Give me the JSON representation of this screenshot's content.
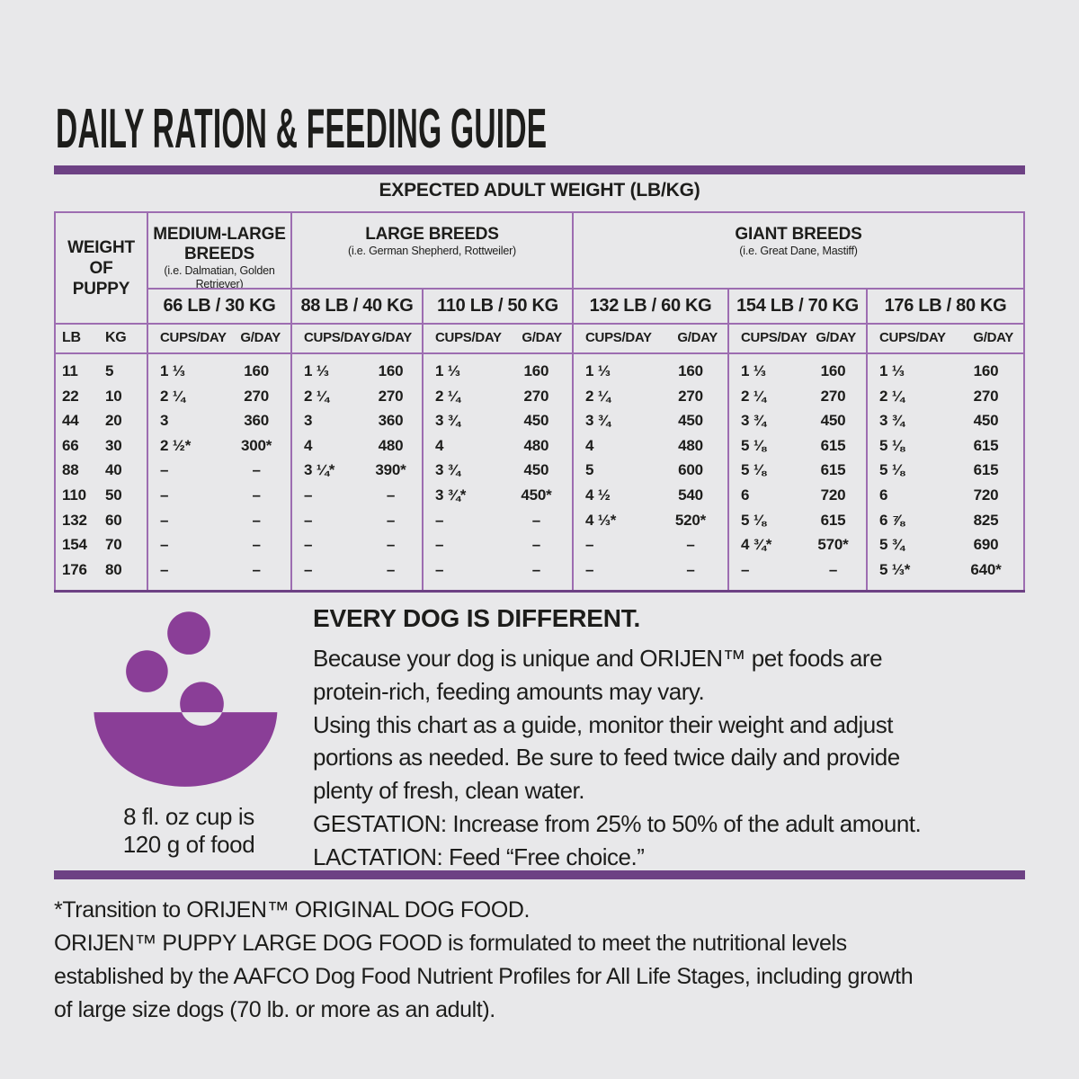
{
  "page": {
    "title": "DAILY RATION & FEEDING GUIDE"
  },
  "colors": {
    "background": "#e8e8ea",
    "accent_purple": "#6d4184",
    "table_line_purple": "#9d6db1",
    "bowl_purple": "#8a3e97",
    "text": "#1d1d1b"
  },
  "table": {
    "banner": "EXPECTED ADULT WEIGHT (LB/KG)",
    "puppy_header": "WEIGHT\nOF\nPUPPY",
    "lb_label": "LB",
    "kg_label": "KG",
    "cups_label": "CUPS/DAY",
    "g_label": "G/DAY",
    "groups": [
      {
        "name": "MEDIUM-LARGE BREEDS",
        "examples": "(i.e. Dalmatian, Golden Retriever)"
      },
      {
        "name": "LARGE BREEDS",
        "examples": "(i.e. German Shepherd, Rottweiler)"
      },
      {
        "name": "GIANT BREEDS",
        "examples": "(i.e. Great Dane, Mastiff)"
      }
    ],
    "weights": [
      "66 LB / 30 KG",
      "88 LB / 40 KG",
      "110 LB / 50 KG",
      "132 LB / 60 KG",
      "154 LB / 70 KG",
      "176 LB / 80 KG"
    ],
    "rows": [
      {
        "lb": "11",
        "kg": "5",
        "cells": [
          [
            "1 ⅓",
            "160"
          ],
          [
            "1 ⅓",
            "160"
          ],
          [
            "1 ⅓",
            "160"
          ],
          [
            "1 ⅓",
            "160"
          ],
          [
            "1 ⅓",
            "160"
          ],
          [
            "1 ⅓",
            "160"
          ]
        ]
      },
      {
        "lb": "22",
        "kg": "10",
        "cells": [
          [
            "2 ¼",
            "270"
          ],
          [
            "2 ¼",
            "270"
          ],
          [
            "2 ¼",
            "270"
          ],
          [
            "2 ¼",
            "270"
          ],
          [
            "2 ¼",
            "270"
          ],
          [
            "2 ¼",
            "270"
          ]
        ]
      },
      {
        "lb": "44",
        "kg": "20",
        "cells": [
          [
            "3",
            "360"
          ],
          [
            "3",
            "360"
          ],
          [
            "3 ¾",
            "450"
          ],
          [
            "3 ¾",
            "450"
          ],
          [
            "3 ¾",
            "450"
          ],
          [
            "3 ¾",
            "450"
          ]
        ]
      },
      {
        "lb": "66",
        "kg": "30",
        "cells": [
          [
            "2 ½*",
            "300*"
          ],
          [
            "4",
            "480"
          ],
          [
            "4",
            "480"
          ],
          [
            "4",
            "480"
          ],
          [
            "5 ⅛",
            "615"
          ],
          [
            "5 ⅛",
            "615"
          ]
        ]
      },
      {
        "lb": "88",
        "kg": "40",
        "cells": [
          [
            "–",
            "–"
          ],
          [
            "3 ¼*",
            "390*"
          ],
          [
            "3 ¾",
            "450"
          ],
          [
            "5",
            "600"
          ],
          [
            "5 ⅛",
            "615"
          ],
          [
            "5 ⅛",
            "615"
          ]
        ]
      },
      {
        "lb": "110",
        "kg": "50",
        "cells": [
          [
            "–",
            "–"
          ],
          [
            "–",
            "–"
          ],
          [
            "3 ¾*",
            "450*"
          ],
          [
            "4 ½",
            "540"
          ],
          [
            "6",
            "720"
          ],
          [
            "6",
            "720"
          ]
        ]
      },
      {
        "lb": "132",
        "kg": "60",
        "cells": [
          [
            "–",
            "–"
          ],
          [
            "–",
            "–"
          ],
          [
            "–",
            "–"
          ],
          [
            "4 ⅓*",
            "520*"
          ],
          [
            "5 ⅛",
            "615"
          ],
          [
            "6 ⅞",
            "825"
          ]
        ]
      },
      {
        "lb": "154",
        "kg": "70",
        "cells": [
          [
            "–",
            "–"
          ],
          [
            "–",
            "–"
          ],
          [
            "–",
            "–"
          ],
          [
            "–",
            "–"
          ],
          [
            "4 ¾*",
            "570*"
          ],
          [
            "5 ¾",
            "690"
          ]
        ]
      },
      {
        "lb": "176",
        "kg": "80",
        "cells": [
          [
            "–",
            "–"
          ],
          [
            "–",
            "–"
          ],
          [
            "–",
            "–"
          ],
          [
            "–",
            "–"
          ],
          [
            "–",
            "–"
          ],
          [
            "5 ⅓*",
            "640*"
          ]
        ]
      }
    ]
  },
  "bowl": {
    "caption": "8 fl. oz cup is\n120 g of food"
  },
  "info": {
    "heading": "EVERY DOG IS DIFFERENT.",
    "body": "Because your dog is unique and ORIJEN™ pet foods are\nprotein-rich, feeding amounts may vary.\nUsing this chart as a guide, monitor their weight and adjust\nportions as needed. Be sure to feed twice daily and provide\nplenty of fresh, clean water.\nGESTATION: Increase from 25% to 50% of the adult amount.\nLACTATION: Feed “Free choice.”"
  },
  "footnote": {
    "text": "*Transition to ORIJEN™ ORIGINAL DOG FOOD.\nORIJEN™ PUPPY LARGE DOG FOOD is formulated to meet the nutritional levels\nestablished by the AAFCO Dog Food Nutrient Profiles for All Life Stages, including growth\nof large size dogs (70 lb. or more as an adult)."
  }
}
